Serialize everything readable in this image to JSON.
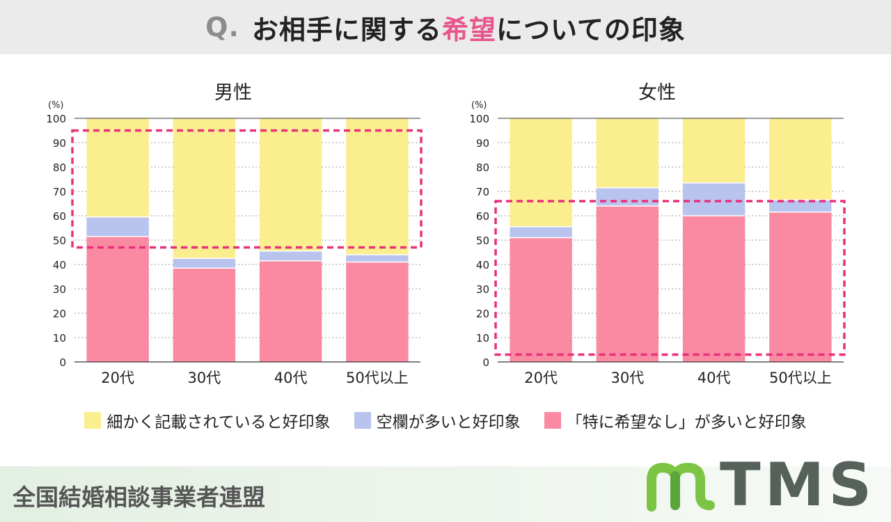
{
  "header": {
    "q_label": "Q.",
    "title_before": "お相手に関する",
    "title_highlight": "希望",
    "title_after": "についての印象"
  },
  "colors": {
    "detailed": "#fbee8e",
    "blank": "#b8c4ee",
    "none": "#f98aa2",
    "highlight": "#e8307a",
    "logo_green": "#7cc443",
    "logo_gray": "#56615b"
  },
  "legend": [
    {
      "key": "detailed",
      "label": "細かく記載されていると好印象"
    },
    {
      "key": "blank",
      "label": "空欄が多いと好印象"
    },
    {
      "key": "none",
      "label": "「特に希望なし」が多いと好印象"
    }
  ],
  "chart_data": [
    {
      "type": "bar",
      "stacked": true,
      "title": "男性",
      "unit_label": "(%)",
      "ylim": [
        0,
        100
      ],
      "yticks": [
        0,
        10,
        20,
        30,
        40,
        50,
        60,
        70,
        80,
        90,
        100
      ],
      "grid": true,
      "categories": [
        "20代",
        "30代",
        "40代",
        "50代以上"
      ],
      "series": [
        {
          "name": "「特に希望なし」が多いと好印象",
          "key": "none",
          "values": [
            51.5,
            38.5,
            41.5,
            41.0
          ]
        },
        {
          "name": "空欄が多いと好印象",
          "key": "blank",
          "values": [
            8.0,
            4.0,
            4.0,
            3.0
          ]
        },
        {
          "name": "細かく記載されていると好印象",
          "key": "detailed",
          "values": [
            40.5,
            57.5,
            54.5,
            56.0
          ]
        }
      ],
      "highlight_range": [
        47,
        95
      ]
    },
    {
      "type": "bar",
      "stacked": true,
      "title": "女性",
      "unit_label": "(%)",
      "ylim": [
        0,
        100
      ],
      "yticks": [
        0,
        10,
        20,
        30,
        40,
        50,
        60,
        70,
        80,
        90,
        100
      ],
      "grid": true,
      "categories": [
        "20代",
        "30代",
        "40代",
        "50代以上"
      ],
      "series": [
        {
          "name": "「特に希望なし」が多いと好印象",
          "key": "none",
          "values": [
            51.0,
            64.0,
            60.0,
            61.5
          ]
        },
        {
          "name": "空欄が多いと好印象",
          "key": "blank",
          "values": [
            4.5,
            7.5,
            13.5,
            5.0
          ]
        },
        {
          "name": "細かく記載されていると好印象",
          "key": "detailed",
          "values": [
            44.5,
            28.5,
            26.5,
            33.5
          ]
        }
      ],
      "highlight_range": [
        3,
        66
      ]
    }
  ],
  "footer": {
    "org_name": "全国結婚相談事業者連盟",
    "logo_text": "TMS"
  }
}
